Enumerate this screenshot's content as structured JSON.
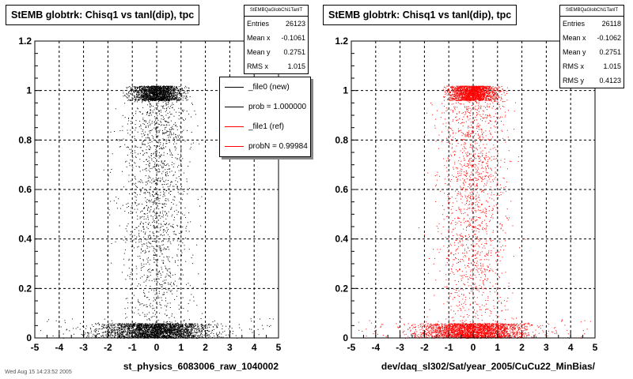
{
  "chart_data": [
    {
      "type": "scatter",
      "title": "StEMB globtrk: Chisq1 vs tanl(dip), tpc",
      "xlabel": "st_physics_6083006_raw_1040002",
      "ylabel": "",
      "xlim": [
        -5,
        5
      ],
      "ylim": [
        0,
        1.2
      ],
      "x_ticks": [
        "-5",
        "-4",
        "-3",
        "-2",
        "-1",
        "0",
        "1",
        "2",
        "3",
        "4",
        "5"
      ],
      "y_ticks": [
        "0",
        "0.2",
        "0.4",
        "0.6",
        "0.8",
        "1",
        "1.2"
      ],
      "grid": true,
      "point_color": "#000000",
      "series": [
        {
          "name": "_file0 (new)",
          "x": [
            -1.7,
            -1.2,
            -0.6,
            -0.1,
            0.4,
            0.9,
            1.5,
            2.1,
            -2.4,
            2.8
          ],
          "y": [
            0.03,
            0.05,
            0.02,
            0.04,
            0.03,
            0.05,
            0.02,
            0.04,
            0.03,
            0.02
          ]
        },
        {
          "x": [
            -0.9,
            -0.5,
            0,
            0.4,
            0.8,
            -0.2,
            0.2,
            0.6,
            -0.7
          ],
          "y": [
            0.99,
            1.0,
            0.98,
            1.01,
            0.97,
            0.96,
            1.0,
            0.99,
            0.98
          ]
        }
      ],
      "stats": {
        "name": "StEMBQaGlobChi1TanlT",
        "rows": [
          {
            "label": "Entries",
            "value": "26123"
          },
          {
            "label": "Mean x",
            "value": "-0.1061"
          },
          {
            "label": "Mean y",
            "value": "0.2751"
          },
          {
            "label": "RMS x",
            "value": "1.015"
          }
        ]
      },
      "legend": {
        "placement": "top-right",
        "entries": [
          {
            "label": "_file0 (new)",
            "color": "#000000"
          },
          {
            "label": "prob = 1.000000",
            "color": "#000000"
          },
          {
            "label": "_file1 (ref)",
            "color": "#ff0000"
          },
          {
            "label": "probN = 0.99984",
            "color": "#ff0000"
          }
        ]
      }
    },
    {
      "type": "scatter",
      "title": "StEMB globtrk: Chisq1 vs tanl(dip), tpc",
      "xlabel": "dev/daq_sl302/Sat/year_2005/CuCu22_MinBias/",
      "ylabel": "",
      "xlim": [
        -5,
        5
      ],
      "ylim": [
        0,
        1.2
      ],
      "x_ticks": [
        "-5",
        "-4",
        "-3",
        "-2",
        "-1",
        "0",
        "1",
        "2",
        "3",
        "4",
        "5"
      ],
      "y_ticks": [
        "0",
        "0.2",
        "0.4",
        "0.6",
        "0.8",
        "1",
        "1.2"
      ],
      "grid": true,
      "point_color": "#ff0000",
      "series": [
        {
          "name": "_file1 (ref)",
          "x": [
            -1.7,
            -1.2,
            -0.6,
            -0.1,
            0.4,
            0.9,
            1.5,
            2.1,
            -2.4,
            2.8
          ],
          "y": [
            0.03,
            0.05,
            0.02,
            0.04,
            0.03,
            0.05,
            0.02,
            0.04,
            0.03,
            0.02
          ]
        },
        {
          "x": [
            -0.9,
            -0.5,
            0,
            0.4,
            0.8,
            -0.2,
            0.2,
            0.6,
            -0.7
          ],
          "y": [
            0.99,
            1.0,
            0.98,
            1.01,
            0.97,
            0.96,
            1.0,
            0.99,
            0.98
          ]
        }
      ],
      "stats": {
        "name": "StEMBQaGlobChi1TanlT",
        "rows": [
          {
            "label": "Entries",
            "value": "26118"
          },
          {
            "label": "Mean x",
            "value": "-0.1062"
          },
          {
            "label": "Mean y",
            "value": "0.2751"
          },
          {
            "label": "RMS x",
            "value": "1.015"
          },
          {
            "label": "RMS y",
            "value": "0.4123"
          }
        ]
      }
    }
  ],
  "footer_text": "Wed Aug 15 14:23:52 2005"
}
